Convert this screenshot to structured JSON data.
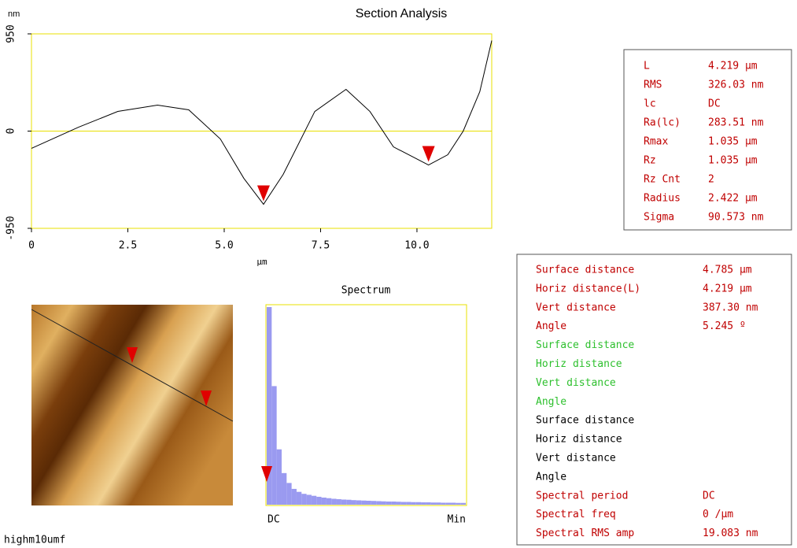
{
  "section": {
    "type": "line",
    "title": "Section Analysis",
    "y_unit": "nm",
    "x_label": "µm",
    "x": [
      0,
      1.22,
      2.24,
      3.27,
      4.08,
      4.9,
      5.51,
      6.02,
      6.53,
      7.35,
      8.16,
      8.78,
      9.39,
      10.3,
      10.8,
      11.2,
      11.63,
      11.94
    ],
    "values": [
      -169,
      38,
      192,
      254,
      208,
      -77,
      -462,
      -715,
      -423,
      192,
      408,
      192,
      -154,
      -331,
      -231,
      0,
      385,
      885
    ],
    "xlim": [
      0,
      11.94
    ],
    "ylim": [
      -950,
      950
    ],
    "xticks": [
      0,
      2.5,
      {
        "value": 5,
        "label": "5.0"
      },
      7.5,
      {
        "value": 10,
        "label": "10.0"
      }
    ],
    "yticks": [
      -950,
      0,
      950
    ],
    "cursors_x": [
      6.02,
      10.3
    ],
    "color": "#000000"
  },
  "image": {
    "name": "highm10umf"
  },
  "spectrum": {
    "type": "bar",
    "title": "Spectrum",
    "start_label": "DC",
    "end_label": "Min",
    "ylim": [
      0,
      100
    ],
    "color": "#9a9af0",
    "values": [
      100,
      60,
      28,
      16,
      11,
      8,
      6.5,
      5.5,
      5,
      4.5,
      4,
      3.6,
      3.3,
      3,
      2.8,
      2.6,
      2.5,
      2.3,
      2.2,
      2.1,
      2,
      1.9,
      1.8,
      1.7,
      1.6,
      1.6,
      1.5,
      1.4,
      1.4,
      1.3,
      1.3,
      1.2,
      1.2,
      1.1,
      1.1,
      1,
      1,
      1,
      0.9,
      0.9
    ]
  },
  "stats": {
    "rows": [
      [
        "L",
        "4.219 µm"
      ],
      [
        "RMS",
        "326.03 nm"
      ],
      [
        "lc",
        "DC"
      ],
      [
        "Ra(lc)",
        "283.51 nm"
      ],
      [
        "Rmax",
        "1.035 µm"
      ],
      [
        "Rz",
        "1.035 µm"
      ],
      [
        "Rz Cnt",
        "2"
      ],
      [
        "Radius",
        "2.422 µm"
      ],
      [
        "Sigma",
        "90.573 nm"
      ]
    ]
  },
  "cursor_table": {
    "rows": [
      {
        "label": "Surface distance",
        "value": "4.785 µm",
        "color": "#c00000"
      },
      {
        "label": "Horiz distance(L)",
        "value": "4.219 µm",
        "color": "#c00000"
      },
      {
        "label": "Vert distance",
        "value": "387.30 nm",
        "color": "#c00000"
      },
      {
        "label": "Angle",
        "value": "5.245 º",
        "color": "#c00000"
      },
      {
        "label": "Surface distance",
        "color": "#2ec02e"
      },
      {
        "label": "Horiz distance",
        "color": "#2ec02e"
      },
      {
        "label": "Vert distance",
        "color": "#2ec02e"
      },
      {
        "label": "Angle",
        "color": "#2ec02e"
      },
      {
        "label": "Surface distance",
        "color": "#000000"
      },
      {
        "label": "Horiz distance",
        "color": "#000000"
      },
      {
        "label": "Vert distance",
        "color": "#000000"
      },
      {
        "label": "Angle",
        "color": "#000000"
      },
      {
        "label": "Spectral period",
        "value": "DC",
        "color": "#c00000"
      },
      {
        "label": "Spectral freq",
        "value": "0 /µm",
        "color": "#c00000"
      },
      {
        "label": "Spectral RMS amp",
        "value": "19.083 nm",
        "color": "#c00000"
      }
    ]
  }
}
